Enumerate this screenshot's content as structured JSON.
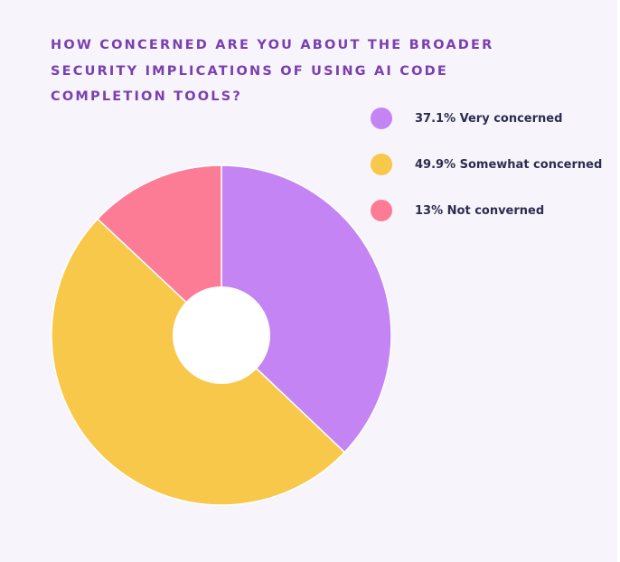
{
  "chart_data": {
    "type": "pie",
    "title": "HOW CONCERNED ARE YOU ABOUT THE BROADER SECURITY IMPLICATIONS OF USING AI CODE COMPLETION TOOLS?",
    "donut": true,
    "legend_position": "top-right",
    "slices": [
      {
        "label": "37.1% Very concerned",
        "value": 37.1,
        "color": "#c484f4"
      },
      {
        "label": "49.9% Somewhat concerned",
        "value": 49.9,
        "color": "#f8c84b"
      },
      {
        "label": "13% Not converned",
        "value": 13,
        "color": "#fc7c96"
      }
    ]
  },
  "colors": {
    "title": "#7a3fb0",
    "legend_text": "#2c2d4f",
    "background": "#f7f5fb"
  }
}
